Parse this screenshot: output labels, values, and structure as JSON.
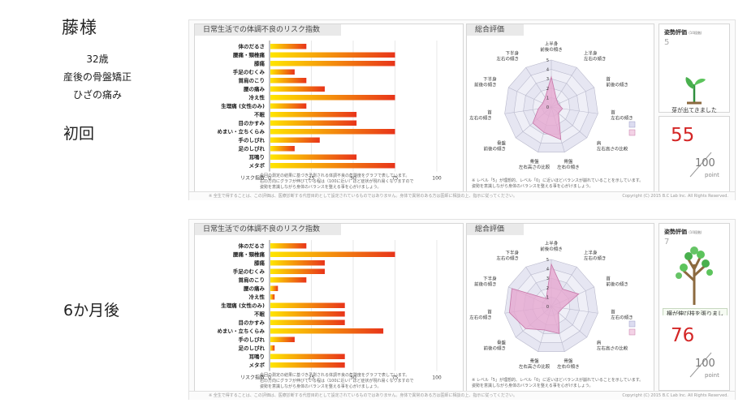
{
  "patient": {
    "name": "藤様",
    "age": "32歳",
    "condition": "産後の骨盤矯正",
    "complaint": "ひざの痛み"
  },
  "colors": {
    "bar_start": "#ffe600",
    "bar_end": "#e8341a",
    "radar_fill": "#e6a8cf",
    "radar_line": "#c678a8",
    "score": "#d42626"
  },
  "shared": {
    "risk_panel_title": "日常生活での体調不良のリスク指数",
    "risk_axis_label": "リスク指数",
    "risk_note": [
      "今回の測定の結果に基づき予測される体調不良の危険度をグラフで表しています。",
      "右の方向にグラフが伸びている程は（100に近い）ほど症状が現れ易くなりますので",
      "姿勢を意識しながら身体のバランスを整える事を心がけましょう。"
    ],
    "eval_panel_title": "総合評価",
    "eval_note": [
      "※ レベル「5」が理想的、レベル「0」に近いほどバランスが崩れていることを示しています。",
      "姿勢を意識しながら身体のバランスを整える事を心がけましょう。"
    ],
    "posture_title": "姿勢評価",
    "posture_scale": "(10段階)",
    "score_total": "100",
    "score_unit": "point",
    "footer_left": "※ 全生で得することは、この評価は、医療診断する代替目的として設定されているものではありません。身体で異常のある方は医師に相談の上、指示に従ってください。",
    "footer_right": "Copyright (C) 2015 B.C Lab Inc. All Rights Reserved."
  },
  "reports": [
    {
      "visit_label": "初回",
      "posture_level": "5",
      "posture_message": "芽が出てきました",
      "score": "55",
      "chart_data": [
        {
          "type": "bar",
          "title": "日常生活での体調不良のリスク指数",
          "xlabel": "リスク指数",
          "xlim": [
            0,
            100
          ],
          "xticks": [
            "0",
            "25",
            "50",
            "75",
            "100"
          ],
          "categories": [
            "体のだるさ",
            "腰痛・頸椎痛",
            "膝痛",
            "手足のむくみ",
            "首肩のこり",
            "腰の痛み",
            "冷え性",
            "生理痛 (女性のみ)",
            "不眠",
            "目のかすみ",
            "めまい・立ちくらみ",
            "手のしびれ",
            "足のしびれ",
            "耳鳴り",
            "メタボ"
          ],
          "values": [
            22,
            75,
            75,
            15,
            22,
            33,
            75,
            22,
            52,
            52,
            75,
            30,
            15,
            52,
            75
          ]
        },
        {
          "type": "radar",
          "title": "総合評価",
          "rmax": 5,
          "rticks": [
            "0",
            "1",
            "2",
            "3",
            "4",
            "5"
          ],
          "axes": [
            [
              "上半身",
              "前後の傾き"
            ],
            [
              "上半身",
              "左右の傾き"
            ],
            [
              "首",
              "前後の傾き"
            ],
            [
              "首",
              "左右の傾き"
            ],
            [
              "肩",
              "左右高さの比較"
            ],
            [
              "骨盤",
              "左右の傾き"
            ],
            [
              "骨盤",
              "左右高さの比較"
            ],
            [
              "骨盤",
              "前後の傾き"
            ],
            [
              "首",
              "左右の傾き"
            ],
            [
              "下半身",
              "前後の傾き"
            ],
            [
              "下半身",
              "左右の傾き"
            ]
          ],
          "values": [
            3.2,
            1.0,
            0.8,
            1.2,
            1.0,
            3.6,
            2.8,
            2.6,
            1.4,
            1.0,
            1.2
          ]
        }
      ]
    },
    {
      "visit_label": "6か月後",
      "posture_level": "7",
      "posture_message": "横が伸び枝を張りました",
      "score": "76",
      "chart_data": [
        {
          "type": "bar",
          "title": "日常生活での体調不良のリスク指数",
          "xlabel": "リスク指数",
          "xlim": [
            0,
            100
          ],
          "xticks": [
            "0",
            "25",
            "50",
            "75",
            "100"
          ],
          "categories": [
            "体のだるさ",
            "腰痛・頸椎痛",
            "膝痛",
            "手足のむくみ",
            "首肩のこり",
            "腰の痛み",
            "冷え性",
            "生理痛 (女性のみ)",
            "不眠",
            "目のかすみ",
            "めまい・立ちくらみ",
            "手のしびれ",
            "足のしびれ",
            "耳鳴り",
            "メタボ"
          ],
          "values": [
            22,
            75,
            33,
            33,
            22,
            5,
            3,
            45,
            45,
            45,
            68,
            15,
            3,
            45,
            45
          ]
        },
        {
          "type": "radar",
          "title": "総合評価",
          "rmax": 5,
          "rticks": [
            "0",
            "1",
            "2",
            "3",
            "4",
            "5"
          ],
          "axes": [
            [
              "上半身",
              "前後の傾き"
            ],
            [
              "上半身",
              "左右の傾き"
            ],
            [
              "首",
              "前後の傾き"
            ],
            [
              "首",
              "左右の傾き"
            ],
            [
              "肩",
              "左右高さの比較"
            ],
            [
              "骨盤",
              "左右の傾き"
            ],
            [
              "骨盤",
              "左右高さの比較"
            ],
            [
              "骨盤",
              "前後の傾き"
            ],
            [
              "首",
              "左右の傾き"
            ],
            [
              "下半身",
              "前後の傾き"
            ],
            [
              "下半身",
              "左右の傾き"
            ]
          ],
          "values": [
            4.5,
            2.2,
            3.2,
            1.2,
            1.0,
            3.0,
            2.6,
            3.6,
            4.5,
            4.6,
            1.0
          ]
        }
      ]
    }
  ]
}
